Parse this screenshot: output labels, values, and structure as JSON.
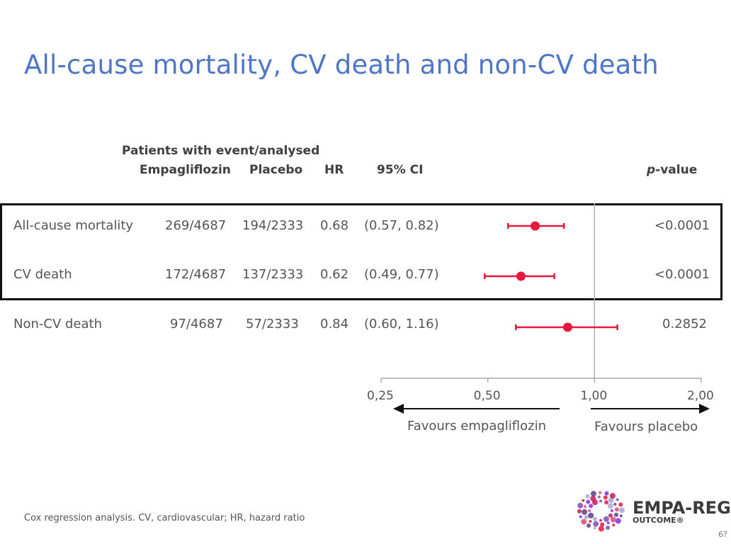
{
  "title": "All-cause mortality, CV death and non-CV death",
  "headers": {
    "group": "Patients with event/analysed",
    "empagliflozin": "Empagliflozin",
    "placebo": "Placebo",
    "hr": "HR",
    "ci": "95% CI",
    "p_italic": "p",
    "p_rest": "-value"
  },
  "rows": [
    {
      "label": "All-cause mortality",
      "empagliflozin": "269/4687",
      "placebo": "194/2333",
      "hr": "0.68",
      "ci": "(0.57, 0.82)",
      "p": "<0.0001"
    },
    {
      "label": "CV death",
      "empagliflozin": "172/4687",
      "placebo": "137/2333",
      "hr": "0.62",
      "ci": "(0.49, 0.77)",
      "p": "<0.0001"
    },
    {
      "label": "Non-CV death",
      "empagliflozin": "97/4687",
      "placebo": "57/2333",
      "hr": "0.84",
      "ci": "(0.60, 1.16)",
      "p": "0.2852"
    }
  ],
  "axis": {
    "ticks": [
      "0,25",
      "0,50",
      "1,00",
      "2,00"
    ],
    "favours_left": "Favours empagliflozin",
    "favours_right": "Favours placebo"
  },
  "footnote": "Cox regression analysis. CV, cardiovascular; HR, hazard ratio",
  "logo": {
    "line1": "EMPA-REG",
    "line2": "OUTCOME®"
  },
  "page_number": "6?",
  "colors": {
    "title": "#4f76c6",
    "marker": "#e8173c",
    "box": "#111111"
  },
  "chart_data": {
    "type": "scatter",
    "subtype": "forest-plot",
    "scale": "log",
    "xlim": [
      0.25,
      2.0
    ],
    "reference_line": 1.0,
    "categories": [
      "All-cause mortality",
      "CV death",
      "Non-CV death"
    ],
    "series": [
      {
        "values": [
          0.68,
          0.62,
          0.84
        ],
        "ci_low": [
          0.57,
          0.49,
          0.6
        ],
        "ci_high": [
          0.82,
          0.77,
          1.16
        ]
      }
    ],
    "tick_values": [
      0.25,
      0.5,
      1.0,
      2.0
    ]
  }
}
